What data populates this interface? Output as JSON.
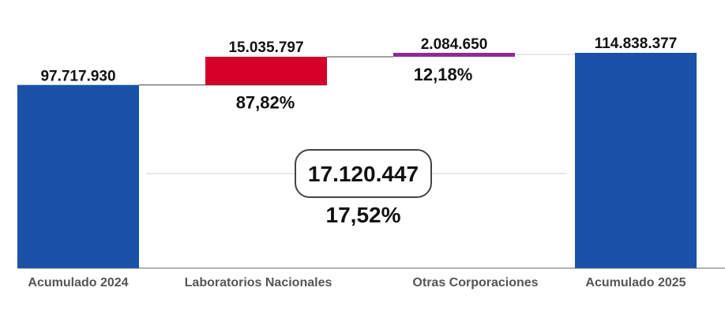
{
  "chart_data": {
    "type": "bar",
    "subtype": "waterfall",
    "categories": [
      "Acumulado 2024",
      "Laboratorios Nacionales",
      "Otras Corporaciones",
      "Acumulado 2025"
    ],
    "values": [
      97717930,
      15035797,
      2084650,
      114838377
    ],
    "value_labels": [
      "97.717.930",
      "15.035.797",
      "2.084.650",
      "114.838.377"
    ],
    "bar_kinds": [
      "total",
      "increase",
      "increase",
      "total"
    ],
    "share_labels": [
      "",
      "87,82%",
      "12,18%",
      ""
    ],
    "total_increase": {
      "value_label": "17.120.447",
      "percent_label": "17,52%"
    },
    "colors": {
      "total": "#1b52a8",
      "laboratorios": "#d4002a",
      "otras": "#8e2a9a",
      "connector": "#444444",
      "axis": "#999999",
      "guide": "#d0d0d0",
      "category_text": "#555555"
    },
    "grid": false,
    "legend": "none",
    "ylim": [
      0,
      114838377
    ]
  }
}
